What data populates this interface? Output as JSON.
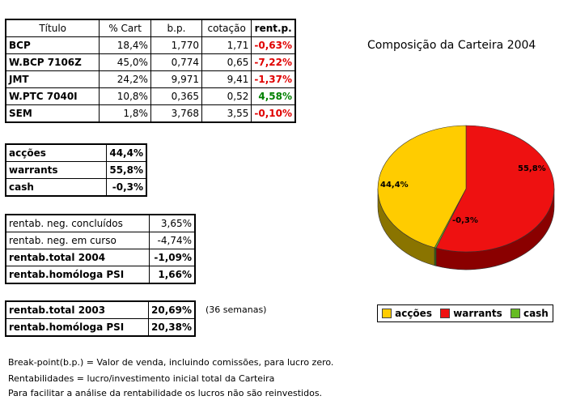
{
  "portfolio": {
    "headers": [
      "Título",
      "% Cart",
      "b.p.",
      "cotação",
      "rent.p."
    ],
    "rows": [
      [
        "BCP",
        "18,4%",
        "1,770",
        "1,71",
        "-0,63%"
      ],
      [
        "W.BCP 7106Z",
        "45,0%",
        "0,774",
        "0,65",
        "-7,22%"
      ],
      [
        "JMT",
        "24,2%",
        "9,971",
        "9,41",
        "-1,37%"
      ],
      [
        "W.PTC 7040I",
        "10,8%",
        "0,365",
        "0,52",
        "4,58%"
      ],
      [
        "SEM",
        "1,8%",
        "3,768",
        "3,55",
        "-0,10%"
      ]
    ]
  },
  "allocation": {
    "rows": [
      [
        "acções",
        "44,4%"
      ],
      [
        "warrants",
        "55,8%"
      ],
      [
        "cash",
        "-0,3%"
      ]
    ]
  },
  "returns": {
    "rows": [
      [
        "rentab. neg. concluídos",
        "3,65%"
      ],
      [
        "rentab. neg. em curso",
        "-4,74%"
      ],
      [
        "rentab.total 2004",
        "-1,09%"
      ],
      [
        "rentab.homóloga PSI",
        "1,66%"
      ]
    ]
  },
  "returns2003": {
    "rows": [
      [
        "rentab.total 2003",
        "20,69%"
      ],
      [
        "rentab.homóloga PSI",
        "20,38%"
      ]
    ],
    "note": "(36 semanas)"
  },
  "footnotes": [
    "Break-point(b.p.) = Valor de venda, incluindo comissões, para lucro zero.",
    "Rentabilidades = lucro/investimento inicial total da Carteira",
    "Para facilitar a análise da rentabilidade os lucros não são reinvestidos."
  ],
  "chart_data": {
    "type": "pie",
    "title": "Composição da Carteira 2004",
    "categories": [
      "acções",
      "warrants",
      "cash"
    ],
    "values": [
      44.4,
      55.8,
      -0.3
    ],
    "labels": [
      "44,4%",
      "55,8%",
      "-0,3%"
    ],
    "colors": [
      "#ffcc00",
      "#ee1111",
      "#66bb22"
    ],
    "legend_position": "bottom"
  }
}
